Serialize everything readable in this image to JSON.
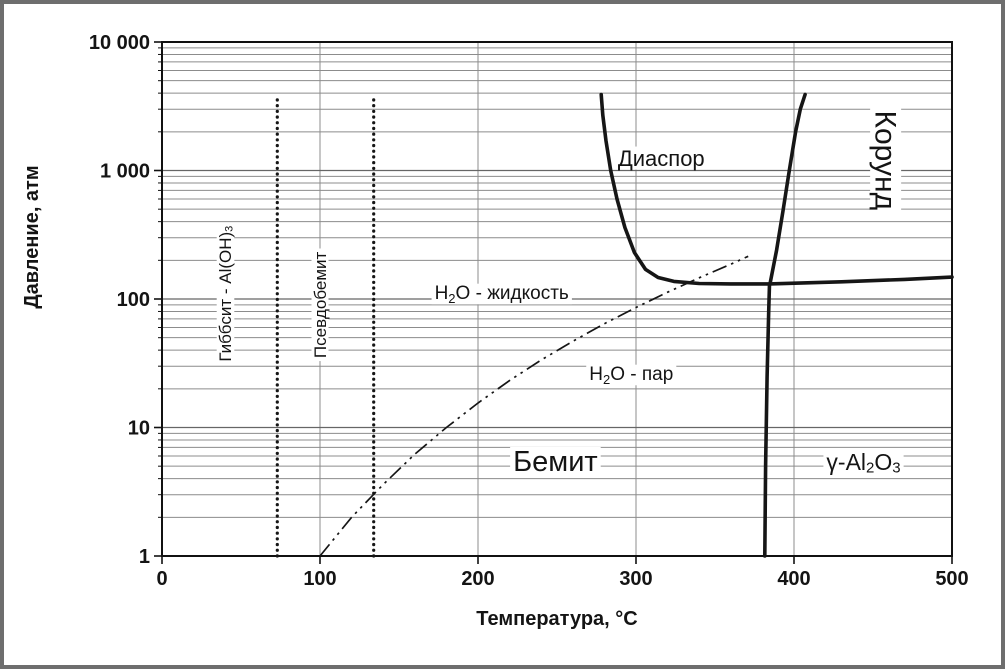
{
  "figure": {
    "background": "#ffffff",
    "border_color": "#6e6e6e",
    "line_color": "#161616",
    "text_color": "#141414",
    "grid_minor_color": "#8c8c8c",
    "grid_major_color": "#666666"
  },
  "chart_data": {
    "type": "line",
    "title": "",
    "xlabel": "Температура, °С",
    "ylabel": "Давление, атм",
    "x_scale": "linear",
    "y_scale": "log",
    "xlim": [
      0,
      500
    ],
    "ylim": [
      1,
      10000
    ],
    "grid": {
      "vertical_at": [
        100,
        200,
        300,
        400,
        500
      ],
      "horizontal_log_minor": true
    },
    "x_ticks": [
      {
        "value": 0,
        "label": "0"
      },
      {
        "value": 100,
        "label": "100"
      },
      {
        "value": 200,
        "label": "200"
      },
      {
        "value": 300,
        "label": "300"
      },
      {
        "value": 400,
        "label": "400"
      },
      {
        "value": 500,
        "label": "500"
      }
    ],
    "y_ticks": [
      {
        "value": 1,
        "label": "1"
      },
      {
        "value": 10,
        "label": "10"
      },
      {
        "value": 100,
        "label": "100"
      },
      {
        "value": 1000,
        "label": "1 000"
      },
      {
        "value": 10000,
        "label": "10 000"
      }
    ],
    "series": [
      {
        "name": "gibbsite-boehmite-boundary",
        "style": "dotted",
        "points": [
          [
            73,
            1
          ],
          [
            73,
            3900
          ]
        ]
      },
      {
        "name": "pseudoboehmite-boehmite-boundary",
        "style": "dotted",
        "points": [
          [
            134,
            1
          ],
          [
            134,
            3900
          ]
        ]
      },
      {
        "name": "water-saturation-line",
        "style": "dash-dot-dot",
        "points": [
          [
            100,
            1
          ],
          [
            120,
            2
          ],
          [
            140,
            3.6
          ],
          [
            160,
            6.2
          ],
          [
            180,
            10
          ],
          [
            200,
            15.5
          ],
          [
            220,
            23.2
          ],
          [
            240,
            33.5
          ],
          [
            260,
            46.9
          ],
          [
            280,
            64.2
          ],
          [
            300,
            85.9
          ],
          [
            320,
            112.9
          ],
          [
            340,
            146.1
          ],
          [
            360,
            186.7
          ],
          [
            371,
            215
          ]
        ]
      },
      {
        "name": "boehmite-diaspore-boundary",
        "style": "solid",
        "points": [
          [
            278,
            3900
          ],
          [
            279,
            2700
          ],
          [
            281,
            1700
          ],
          [
            284,
            1000
          ],
          [
            288,
            600
          ],
          [
            293,
            360
          ],
          [
            299,
            230
          ],
          [
            306,
            170
          ],
          [
            314,
            147
          ],
          [
            324,
            137
          ],
          [
            340,
            132
          ],
          [
            360,
            131
          ],
          [
            384,
            131
          ]
        ]
      },
      {
        "name": "diaspore-corundum-boundary",
        "style": "solid",
        "points": [
          [
            385,
            135
          ],
          [
            389,
            240
          ],
          [
            393,
            480
          ],
          [
            397,
            1000
          ],
          [
            401,
            2000
          ],
          [
            404,
            3000
          ],
          [
            407,
            3900
          ]
        ]
      },
      {
        "name": "boehmite-gamma-al2o3-boundary",
        "style": "solid",
        "points": [
          [
            381.5,
            1
          ],
          [
            382,
            5
          ],
          [
            383,
            25
          ],
          [
            384,
            80
          ],
          [
            384.5,
            131
          ]
        ]
      },
      {
        "name": "gamma-al2o3-corundum-boundary",
        "style": "solid",
        "points": [
          [
            384.5,
            131
          ],
          [
            430,
            136
          ],
          [
            470,
            142
          ],
          [
            500,
            148
          ]
        ]
      }
    ],
    "annotations": [
      {
        "id": "label-diaspore",
        "text": "Диаспор",
        "x": 316,
        "y": 1250,
        "size": 22,
        "rotate": 0
      },
      {
        "id": "label-corundum",
        "text": "Корунд",
        "x": 458,
        "y": 1200,
        "size": 30,
        "rotate": 90
      },
      {
        "id": "label-boehmite",
        "text": "Бемит",
        "x": 249,
        "y": 5.4,
        "size": 29,
        "rotate": 0
      },
      {
        "id": "label-gamma-al2o3",
        "text": "γ-Al₂O₃",
        "x": 444,
        "y": 5.4,
        "size": 23,
        "rotate": 0
      },
      {
        "id": "label-water-liquid",
        "text": "H₂O - жидкость",
        "x": 215,
        "y": 111,
        "size": 19,
        "rotate": 0
      },
      {
        "id": "label-water-vapor",
        "text": "H₂O - пар",
        "x": 297,
        "y": 26,
        "size": 19,
        "rotate": 0
      },
      {
        "id": "label-gibbsite",
        "text": "Гиббсит - Al(OH)₃",
        "x": 40,
        "y": 110,
        "size": 17,
        "rotate": -90
      },
      {
        "id": "label-pseudoboehmite",
        "text": "Псевдобемит",
        "x": 100,
        "y": 90,
        "size": 17,
        "rotate": -90
      }
    ]
  }
}
